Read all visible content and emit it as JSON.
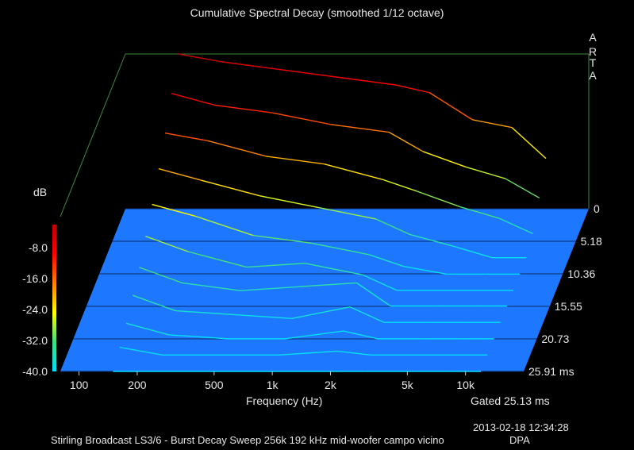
{
  "title": "Cumulative Spectral Decay (smoothed 1/12 octave)",
  "brand_letters": [
    "A",
    "R",
    "T",
    "A"
  ],
  "gating_text": "Gated 25.13 ms",
  "timestamp": "2013-02-18  12:34:28",
  "footer": "Stirling Broadcast LS3/6 - Burst Decay Sweep 256k 192 kHz mid-woofer campo vicino",
  "footer_tag": "DPA",
  "colors": {
    "floor": "#1e78ff",
    "frame": "#3c8a3c",
    "colormap": [
      "#00e0ff",
      "#40e080",
      "#ffff00",
      "#ff8000",
      "#ff0000",
      "#c00000"
    ]
  },
  "chart_data": {
    "type": "waterfall",
    "title": "Cumulative Spectral Decay (smoothed 1/12 octave)",
    "xlabel": "Frequency (Hz)",
    "x_scale": "log",
    "xlim": [
      80,
      20000
    ],
    "x_ticks": [
      "100",
      "200",
      "500",
      "1k",
      "2k",
      "5k",
      "10k"
    ],
    "x_tick_values": [
      100,
      200,
      500,
      1000,
      2000,
      5000,
      10000
    ],
    "ylabel": "dB",
    "ylim": [
      -40,
      0
    ],
    "y_ticks": [
      "-8.0",
      "-16.0",
      "-24.0",
      "-32.0",
      "-40.0"
    ],
    "y_tick_values": [
      -8,
      -16,
      -24,
      -32,
      -40
    ],
    "z_label": "ms",
    "z_ticks": [
      "0",
      "5.18",
      "10.36",
      "15.55",
      "20.73",
      "25.91 ms"
    ],
    "z_tick_values": [
      0,
      5.18,
      10.36,
      15.55,
      20.73,
      25.91
    ],
    "slices": [
      {
        "t": 0.0,
        "points": [
          [
            150,
            0
          ],
          [
            250,
            -2
          ],
          [
            500,
            -4
          ],
          [
            1000,
            -6
          ],
          [
            2000,
            -8
          ],
          [
            3000,
            -10
          ],
          [
            5000,
            -17
          ],
          [
            8000,
            -19
          ],
          [
            12000,
            -27
          ]
        ]
      },
      {
        "t": 2.6,
        "points": [
          [
            150,
            -6
          ],
          [
            250,
            -9
          ],
          [
            500,
            -11
          ],
          [
            1000,
            -14
          ],
          [
            2000,
            -16
          ],
          [
            3000,
            -21
          ],
          [
            5000,
            -25
          ],
          [
            8000,
            -28
          ],
          [
            12000,
            -33
          ]
        ]
      },
      {
        "t": 5.2,
        "points": [
          [
            150,
            -12
          ],
          [
            250,
            -14
          ],
          [
            500,
            -18
          ],
          [
            1000,
            -20
          ],
          [
            2000,
            -24
          ],
          [
            3000,
            -27
          ],
          [
            5000,
            -31
          ],
          [
            8000,
            -34
          ],
          [
            12000,
            -38
          ]
        ]
      },
      {
        "t": 7.8,
        "points": [
          [
            150,
            -17
          ],
          [
            250,
            -20
          ],
          [
            500,
            -24
          ],
          [
            1000,
            -27
          ],
          [
            2000,
            -30
          ],
          [
            3000,
            -34
          ],
          [
            5000,
            -37
          ],
          [
            8000,
            -40
          ],
          [
            12000,
            -40
          ]
        ]
      },
      {
        "t": 10.4,
        "points": [
          [
            150,
            -22
          ],
          [
            250,
            -25
          ],
          [
            500,
            -30
          ],
          [
            1000,
            -32
          ],
          [
            2000,
            -35
          ],
          [
            3000,
            -38
          ],
          [
            5000,
            -40
          ],
          [
            8000,
            -40
          ],
          [
            12000,
            -40
          ]
        ]
      },
      {
        "t": 13.0,
        "points": [
          [
            150,
            -26
          ],
          [
            250,
            -30
          ],
          [
            500,
            -34
          ],
          [
            1000,
            -33
          ],
          [
            2000,
            -36
          ],
          [
            3000,
            -40
          ],
          [
            5000,
            -40
          ],
          [
            8000,
            -40
          ],
          [
            12000,
            -40
          ]
        ]
      },
      {
        "t": 15.5,
        "points": [
          [
            150,
            -30
          ],
          [
            250,
            -34
          ],
          [
            500,
            -36
          ],
          [
            1000,
            -35
          ],
          [
            2000,
            -34
          ],
          [
            3000,
            -40
          ],
          [
            5000,
            -40
          ],
          [
            8000,
            -40
          ],
          [
            12000,
            -40
          ]
        ]
      },
      {
        "t": 18.1,
        "points": [
          [
            150,
            -33
          ],
          [
            250,
            -37
          ],
          [
            500,
            -38
          ],
          [
            1000,
            -39
          ],
          [
            2000,
            -36
          ],
          [
            3000,
            -40
          ],
          [
            5000,
            -40
          ],
          [
            8000,
            -40
          ],
          [
            12000,
            -40
          ]
        ]
      },
      {
        "t": 20.7,
        "points": [
          [
            150,
            -36
          ],
          [
            250,
            -39
          ],
          [
            500,
            -40
          ],
          [
            1000,
            -40
          ],
          [
            2000,
            -38
          ],
          [
            3000,
            -40
          ],
          [
            5000,
            -40
          ],
          [
            8000,
            -40
          ],
          [
            12000,
            -40
          ]
        ]
      },
      {
        "t": 23.3,
        "points": [
          [
            150,
            -38
          ],
          [
            250,
            -40
          ],
          [
            500,
            -40
          ],
          [
            1000,
            -40
          ],
          [
            2000,
            -39
          ],
          [
            3000,
            -40
          ],
          [
            5000,
            -40
          ],
          [
            8000,
            -40
          ],
          [
            12000,
            -40
          ]
        ]
      },
      {
        "t": 25.91,
        "points": [
          [
            150,
            -40
          ],
          [
            250,
            -40
          ],
          [
            500,
            -40
          ],
          [
            1000,
            -40
          ],
          [
            2000,
            -40
          ],
          [
            3000,
            -40
          ],
          [
            5000,
            -40
          ],
          [
            8000,
            -40
          ],
          [
            12000,
            -40
          ]
        ]
      }
    ]
  }
}
